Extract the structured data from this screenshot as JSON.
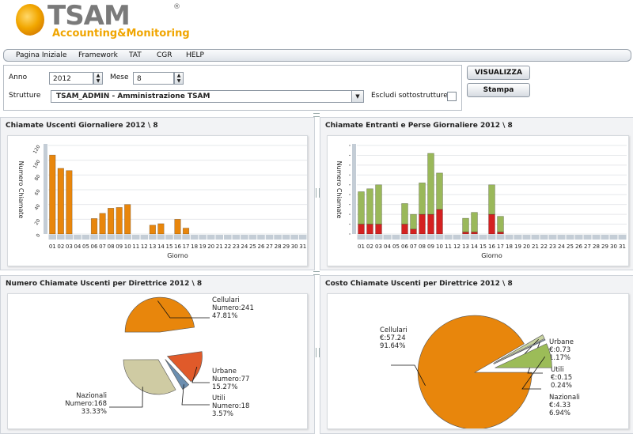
{
  "brand": {
    "name": "TSAM",
    "registered": "®",
    "subtitle": "Accounting&Monitoring"
  },
  "menu": [
    "Pagina Iniziale",
    "Framework",
    "TAT",
    "CGR",
    "HELP"
  ],
  "form": {
    "anno_label": "Anno",
    "anno_value": "2012",
    "mese_label": "Mese",
    "mese_value": "8",
    "strutture_label": "Strutture",
    "strutture_value": "TSAM_ADMIN - Amministrazione TSAM",
    "escludi_label": "Escludi sottostrutture",
    "visualizza_button": "VISUALIZZA",
    "stampa_button": "Stampa"
  },
  "colors": {
    "orange": "#e8860c",
    "red": "#d42121",
    "green": "#9ab85a",
    "tan": "#cfcba3",
    "steelblue": "#6c8fb0",
    "olive": "#9cbc58",
    "axis_tick_bar": "#c4cdd6"
  },
  "chart_data": [
    {
      "type": "bar",
      "title": "Chiamate Uscenti Giornaliere 2012 \\ 8",
      "xlabel": "Giorno",
      "ylabel": "Numero Chiamate",
      "yticks": [
        "0",
        "20",
        "40",
        "60",
        "80",
        "100",
        "120"
      ],
      "ylim": [
        0,
        120
      ],
      "categories": [
        "01",
        "02",
        "03",
        "04",
        "05",
        "06",
        "07",
        "08",
        "09",
        "10",
        "11",
        "12",
        "13",
        "14",
        "15",
        "16",
        "17",
        "18",
        "19",
        "20",
        "21",
        "22",
        "23",
        "24",
        "25",
        "26",
        "27",
        "28",
        "29",
        "30",
        "31"
      ],
      "series": [
        {
          "values": [
            107,
            89,
            86,
            0,
            0,
            21,
            28,
            35,
            36,
            40,
            0,
            0,
            12,
            14,
            0,
            20,
            8,
            0,
            0,
            0,
            0,
            0,
            0,
            0,
            0,
            0,
            0,
            0,
            0,
            0,
            0
          ]
        }
      ]
    },
    {
      "type": "bar",
      "stacked": true,
      "title": "Chiamate Entranti e Perse Giornaliere 2012 \\ 8",
      "xlabel": "Giorno",
      "ylabel": "Numero Chiamate",
      "ylim": [
        0,
        9
      ],
      "categories": [
        "01",
        "02",
        "03",
        "04",
        "05",
        "06",
        "07",
        "08",
        "09",
        "10",
        "11",
        "12",
        "13",
        "14",
        "15",
        "16",
        "17",
        "18",
        "19",
        "20",
        "21",
        "22",
        "23",
        "24",
        "25",
        "26",
        "27",
        "28",
        "29",
        "30",
        "31"
      ],
      "series": [
        {
          "values": [
            1,
            1,
            1,
            0,
            0,
            1,
            0.5,
            2,
            2,
            2.5,
            0,
            0,
            0.2,
            0.2,
            0,
            2,
            0.2,
            0,
            0,
            0,
            0,
            0,
            0,
            0,
            0,
            0,
            0,
            0,
            0,
            0,
            0
          ]
        },
        {
          "values": [
            3.3,
            3.6,
            4,
            0,
            0,
            2.1,
            1.5,
            3.2,
            6.2,
            3.7,
            0,
            0,
            1.4,
            2,
            0,
            3,
            1.6,
            0,
            0,
            0,
            0,
            0,
            0,
            0,
            0,
            0,
            0,
            0,
            0,
            0,
            0
          ]
        }
      ]
    },
    {
      "type": "pie",
      "title": "Numero Chiamate Uscenti per Direttrice 2012 \\ 8",
      "slices": [
        {
          "label": "Cellulari",
          "line2": "Numero:241",
          "line3": "47.81%",
          "value": 47.81
        },
        {
          "label": "Urbane",
          "line2": "Numero:77",
          "line3": "15.27%",
          "value": 15.27
        },
        {
          "label": "Utili",
          "line2": "Numero:18",
          "line3": "3.57%",
          "value": 3.57
        },
        {
          "label": "Nazionali",
          "line2": "Numero:168",
          "line3": "33.33%",
          "value": 33.33
        }
      ]
    },
    {
      "type": "pie",
      "title": "Costo Chiamate Uscenti per Direttrice 2012 \\ 8",
      "slices": [
        {
          "label": "Cellulari",
          "line2": "€:57.24",
          "line3": "91.64%",
          "value": 91.64
        },
        {
          "label": "Urbane",
          "line2": "€:0.73",
          "line3": "1.17%",
          "value": 1.17
        },
        {
          "label": "Utili",
          "line2": "€:0.15",
          "line3": "0.24%",
          "value": 0.24
        },
        {
          "label": "Nazionali",
          "line2": "€:4.33",
          "line3": "6.94%",
          "value": 6.94
        }
      ]
    }
  ]
}
